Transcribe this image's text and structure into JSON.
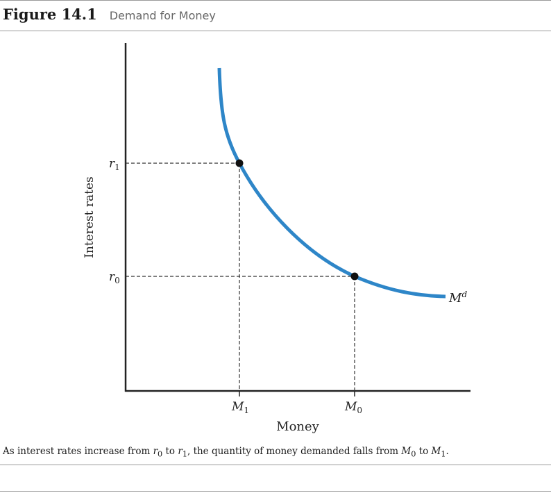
{
  "figure": {
    "number": "Figure 14.1",
    "title": "Demand for Money"
  },
  "chart_data": {
    "type": "line",
    "title": "Demand for Money",
    "xlabel": "Money",
    "ylabel": "Interest rates",
    "curve_label": "M",
    "curve_label_sup": "d",
    "points": [
      {
        "x_label": "M",
        "x_sub": "1",
        "y_label": "r",
        "y_sub": "1"
      },
      {
        "x_label": "M",
        "x_sub": "0",
        "y_label": "r",
        "y_sub": "0"
      }
    ],
    "curve_color": "#2e86c8",
    "grid": false
  },
  "caption": {
    "p1": "As interest rates increase from ",
    "r0": "r",
    "r0_sub": "0",
    "p2": " to ",
    "r1": "r",
    "r1_sub": "1",
    "p3": ", the quantity of money demanded falls from ",
    "m0": "M",
    "m0_sub": "0",
    "p4": " to ",
    "m1": "M",
    "m1_sub": "1",
    "p5": "."
  }
}
